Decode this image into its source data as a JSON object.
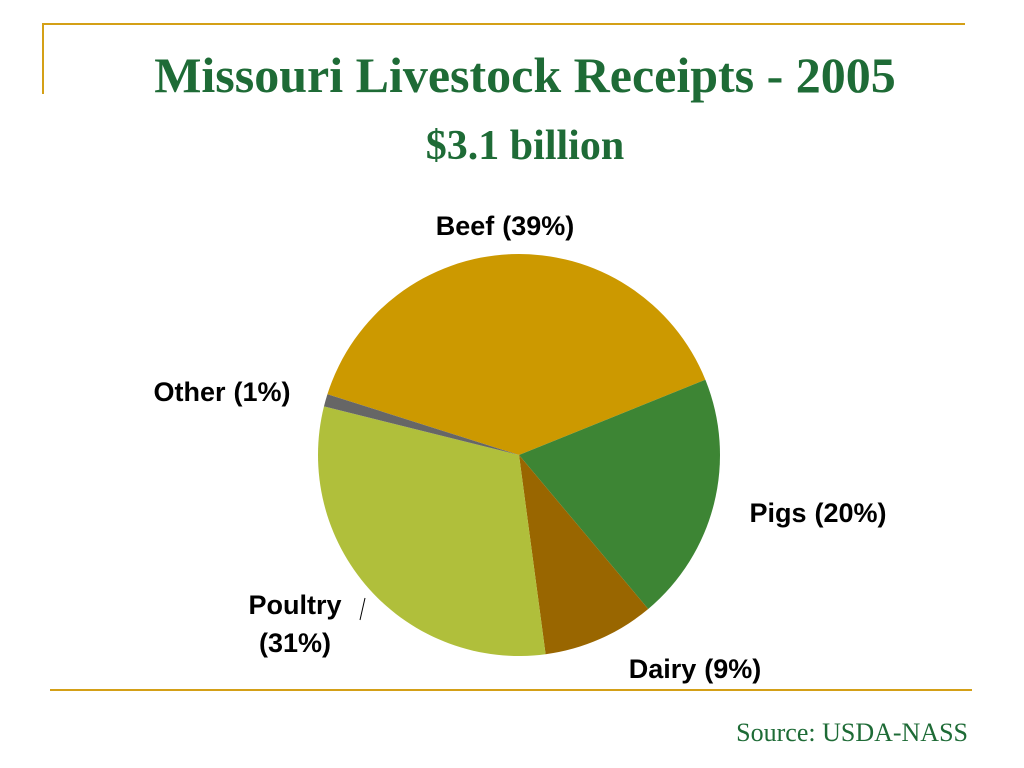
{
  "chart_data": {
    "type": "pie",
    "title": "Missouri Livestock Receipts - 2005",
    "subtitle": "$3.1 billion",
    "categories": [
      "Beef",
      "Pigs",
      "Dairy",
      "Poultry",
      "Other"
    ],
    "values": [
      39,
      20,
      9,
      31,
      1
    ],
    "value_labels": [
      "(39%)",
      "(20%)",
      "(9%)",
      "(31%)",
      "(1%)"
    ],
    "colors": [
      "#cc9900",
      "#3d8534",
      "#996600",
      "#b0bf3b",
      "#666666"
    ],
    "source": "Source: USDA-NASS"
  }
}
